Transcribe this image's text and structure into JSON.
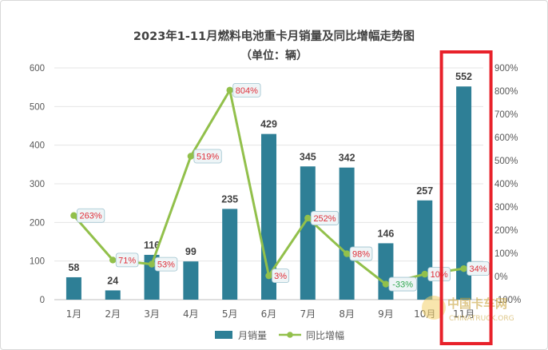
{
  "chart_data": {
    "type": "bar+line",
    "title": "2023年1-11月燃料电池重卡月销量及同比增幅走势图",
    "subtitle": "（单位：辆）",
    "categories": [
      "1月",
      "2月",
      "3月",
      "4月",
      "5月",
      "6月",
      "7月",
      "8月",
      "9月",
      "10月",
      "11月"
    ],
    "series": [
      {
        "name": "月销量",
        "type": "bar",
        "axis": "left",
        "values": [
          58,
          24,
          116,
          99,
          235,
          429,
          345,
          342,
          146,
          257,
          552
        ],
        "color": "#2e7f96"
      },
      {
        "name": "同比增幅",
        "type": "line",
        "axis": "right",
        "values": [
          263,
          71,
          53,
          519,
          804,
          3,
          252,
          98,
          -33,
          10,
          34
        ],
        "labels": [
          "263%",
          "71%",
          "53%",
          "519%",
          "804%",
          "3%",
          "252%",
          "98%",
          "-33%",
          "10%",
          "34%"
        ],
        "color": "#92c04b"
      }
    ],
    "ylim_left": [
      0,
      600
    ],
    "yticks_left": [
      "0",
      "100",
      "200",
      "300",
      "400",
      "500",
      "600"
    ],
    "ylim_right": [
      -100,
      900
    ],
    "yticks_right": [
      "-100%",
      "0%",
      "100%",
      "200%",
      "300%",
      "400%",
      "500%",
      "600%",
      "700%",
      "800%",
      "900%"
    ],
    "legend_position": "bottom",
    "highlight": {
      "category": "11月",
      "color": "#e8212a"
    },
    "pct_positive_color": "#e0303a",
    "pct_negative_color": "#2fa84f"
  },
  "watermark": {
    "brand": "中国卡车网",
    "domain": "CHINATRUCK.ORG"
  }
}
